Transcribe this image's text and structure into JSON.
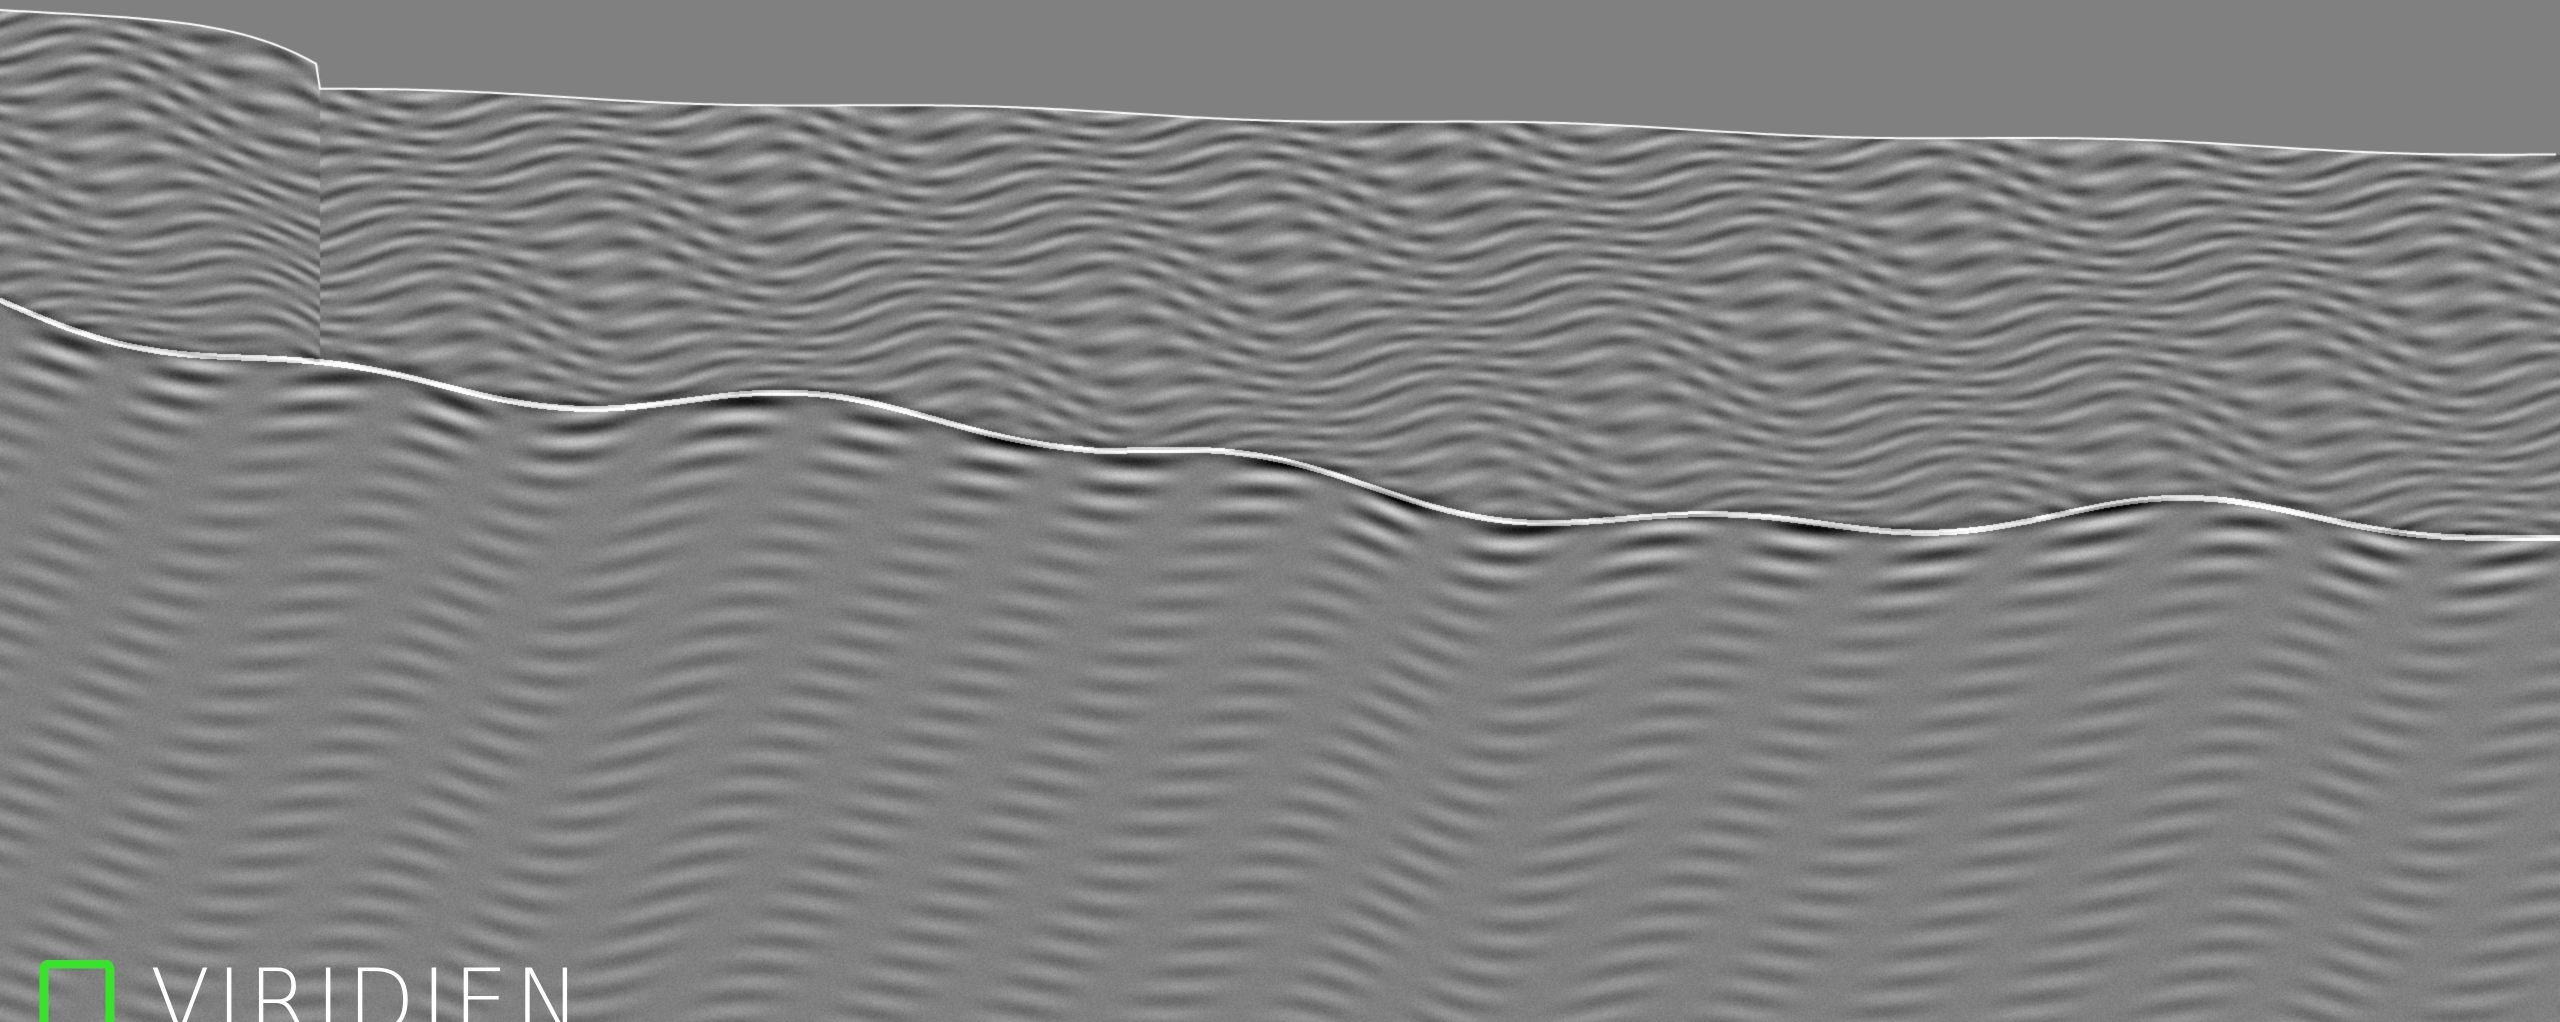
{
  "image": {
    "subject": "seismic-section",
    "background_color": "#808080",
    "trace_light": "#ffffff",
    "trace_dark": "#000000",
    "trace_mid": "#7d7d7d"
  },
  "logo": {
    "wordmark": "VIRIDIEN",
    "mark_color": "#39e22b",
    "text_color": "#ffffff"
  }
}
